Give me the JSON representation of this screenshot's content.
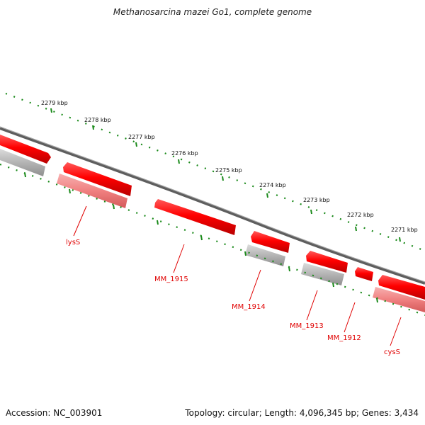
{
  "title": "Methanosarcina mazei Go1, complete genome",
  "accession": "Accession: NC_003901",
  "summary": "Topology: circular; Length: 4,096,345 bp; Genes: 3,434",
  "colors": {
    "backbone": "#7a7a7a",
    "tick": "#1a8a1a",
    "gene_forward": "#ff0000",
    "gene_reverse": "#f08080",
    "gene_other": "#b4b4b4",
    "gene_label": "#e00000"
  },
  "scale_ticks": [
    "2279 kbp",
    "2278 kbp",
    "2277 kbp",
    "2276 kbp",
    "2275 kbp",
    "2274 kbp",
    "2273 kbp",
    "2272 kbp",
    "2271 kbp"
  ],
  "gene_labels": [
    "lysS",
    "MM_1915",
    "MM_1914",
    "MM_1913",
    "MM_1912",
    "cysS"
  ]
}
